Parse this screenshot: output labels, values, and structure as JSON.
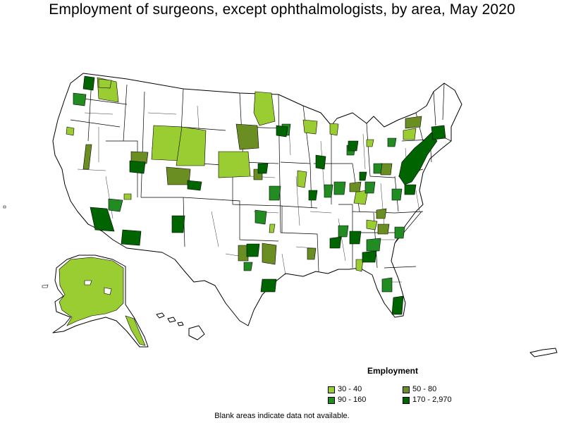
{
  "title": "Employment of surgeons, except ophthalmologists, by area, May 2020",
  "legend": {
    "title": "Employment",
    "items": [
      {
        "label": "30 - 40",
        "color": "#9acd32"
      },
      {
        "label": "50 - 80",
        "color": "#6b8e23"
      },
      {
        "label": "90 - 160",
        "color": "#228b22"
      },
      {
        "label": "170 - 2,970",
        "color": "#006400"
      }
    ]
  },
  "footnote": "Blank areas indicate data not available.",
  "colors": {
    "outline": "#000000",
    "no_data": "#ffffff"
  }
}
